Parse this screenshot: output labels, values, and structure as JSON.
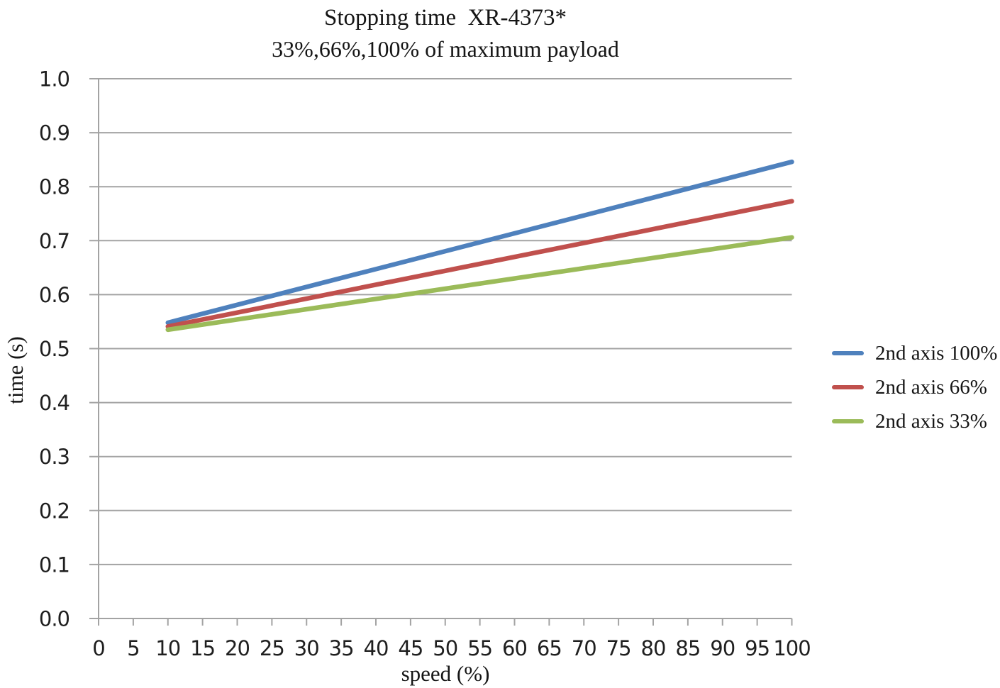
{
  "chart_data": {
    "type": "line",
    "title": "Stopping time  XR-4373*",
    "subtitle": "33%,66%,100% of maximum payload",
    "xlabel": "speed (%)",
    "ylabel": "time (s)",
    "xlim": [
      0,
      100
    ],
    "ylim": [
      0.0,
      1.0
    ],
    "x_ticks": [
      0,
      5,
      10,
      15,
      20,
      25,
      30,
      35,
      40,
      45,
      50,
      55,
      60,
      65,
      70,
      75,
      80,
      85,
      90,
      95,
      100
    ],
    "y_ticks": [
      0.0,
      0.1,
      0.2,
      0.3,
      0.4,
      0.5,
      0.6,
      0.7,
      0.8,
      0.9,
      1.0
    ],
    "y_tick_decimals": 1,
    "grid": "horizontal",
    "legend_position": "right",
    "axis_color": "#A3A3A3",
    "series": [
      {
        "name": "2nd axis 100%",
        "color": "#4F81BD",
        "x": [
          10,
          100
        ],
        "y": [
          0.548,
          0.846
        ]
      },
      {
        "name": "2nd axis 66%",
        "color": "#C0504D",
        "x": [
          10,
          100
        ],
        "y": [
          0.541,
          0.773
        ]
      },
      {
        "name": "2nd axis 33%",
        "color": "#9BBB59",
        "x": [
          10,
          100
        ],
        "y": [
          0.535,
          0.706
        ]
      }
    ]
  }
}
